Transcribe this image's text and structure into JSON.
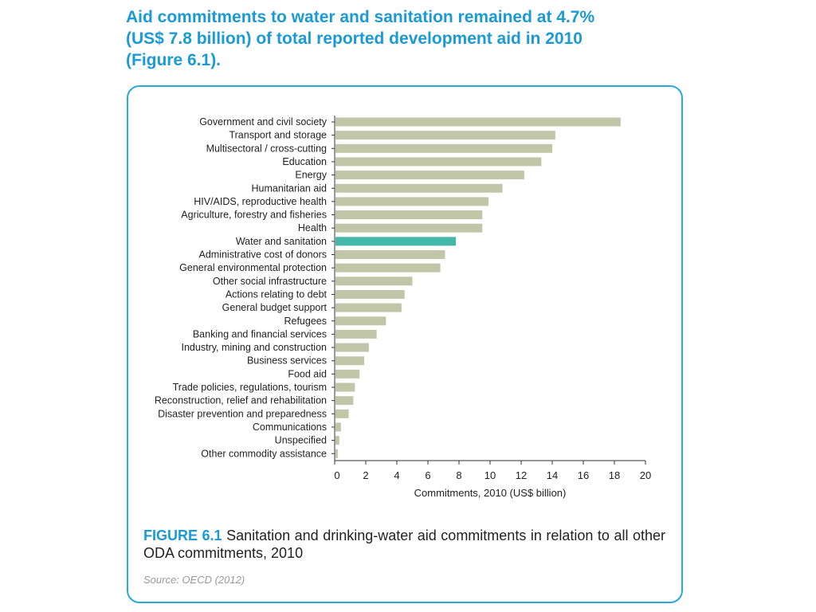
{
  "headline": {
    "line1": "Aid commitments to water and sanitation remained at 4.7%",
    "line2": "(US$ 7.8 billion) of total reported development aid in 2010",
    "line3": "(Figure 6.1)."
  },
  "caption": {
    "figure_label": "FIGURE 6.1",
    "text": "Sanitation and drinking-water aid commitments in relation to all other ODA commitments, 2010"
  },
  "source": "Source: OECD (2012)",
  "colors": {
    "bar": "#c2c6a8",
    "highlight": "#45b8a9",
    "accent": "#1a9ad6"
  },
  "chart_data": {
    "type": "bar",
    "orientation": "horizontal",
    "categories": [
      "Government and civil society",
      "Transport and storage",
      "Multisectoral / cross-cutting",
      "Education",
      "Energy",
      "Humanitarian aid",
      "HIV/AIDS, reproductive health",
      "Agriculture, forestry and fisheries",
      "Health",
      "Water and sanitation",
      "Administrative cost of donors",
      "General environmental protection",
      "Other social infrastructure",
      "Actions relating to debt",
      "General budget support",
      "Refugees",
      "Banking and financial services",
      "Industry, mining and construction",
      "Business services",
      "Food aid",
      "Trade policies, regulations, tourism",
      "Reconstruction, relief and rehabilitation",
      "Disaster prevention and preparedness",
      "Communications",
      "Unspecified",
      "Other commodity assistance"
    ],
    "values": [
      18.4,
      14.2,
      14.0,
      13.3,
      12.2,
      10.8,
      9.9,
      9.5,
      9.5,
      7.8,
      7.1,
      6.8,
      5.0,
      4.5,
      4.3,
      3.3,
      2.7,
      2.2,
      1.9,
      1.6,
      1.3,
      1.2,
      0.9,
      0.4,
      0.3,
      0.2
    ],
    "highlight": "Water and sanitation",
    "xlabel": "Commitments, 2010 (US$ billion)",
    "ylabel": "",
    "xlim": [
      0,
      20
    ],
    "xticks": [
      0,
      2,
      4,
      6,
      8,
      10,
      12,
      14,
      16,
      18,
      20
    ],
    "grid": false,
    "legend": "none"
  }
}
